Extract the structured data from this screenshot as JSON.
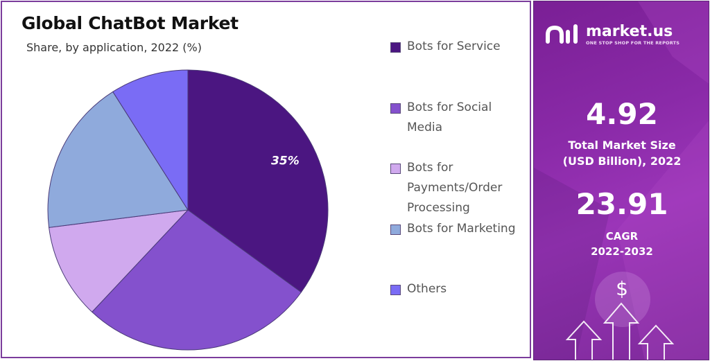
{
  "chart_data": {
    "type": "pie",
    "title": "Global ChatBot Market",
    "subtitle": "Share, by application, 2022 (%)",
    "slices": [
      {
        "label": "Bots for Service",
        "value": 35,
        "color": "#4b1681",
        "label_shown": "35%"
      },
      {
        "label": "Bots for Social Media",
        "value": 27,
        "color": "#8451cd",
        "label_shown": ""
      },
      {
        "label": "Bots for Payments/Order Processing",
        "value": 11,
        "color": "#d0a9ee",
        "label_shown": ""
      },
      {
        "label": "Bots for Marketing",
        "value": 18,
        "color": "#8faadc",
        "label_shown": ""
      },
      {
        "label": "Others",
        "value": 9,
        "color": "#7a6cf5",
        "label_shown": ""
      }
    ],
    "legend_position": "right"
  },
  "legend": [
    {
      "lines": [
        "Bots for Service"
      ],
      "color": "#4b1681"
    },
    {
      "lines": [
        "Bots for Social",
        "Media"
      ],
      "color": "#8451cd"
    },
    {
      "lines": [
        "Bots for",
        "Payments/Order",
        "Processing"
      ],
      "color": "#d0a9ee"
    },
    {
      "lines": [
        "Bots for Marketing"
      ],
      "color": "#8faadc"
    },
    {
      "lines": [
        "Others"
      ],
      "color": "#7a6cf5"
    }
  ],
  "panel": {
    "brand": "market.us",
    "tagline": "ONE STOP SHOP FOR THE REPORTS",
    "market_size_value": "4.92",
    "market_size_label_1": "Total Market Size",
    "market_size_label_2": "(USD Billion), 2022",
    "cagr_value": "23.91",
    "cagr_label_1": "CAGR",
    "cagr_label_2": "2022-2032",
    "dollar_symbol": "$",
    "icons": [
      "logo-icon",
      "dollar-icon",
      "growth-arrows-icon"
    ]
  }
}
